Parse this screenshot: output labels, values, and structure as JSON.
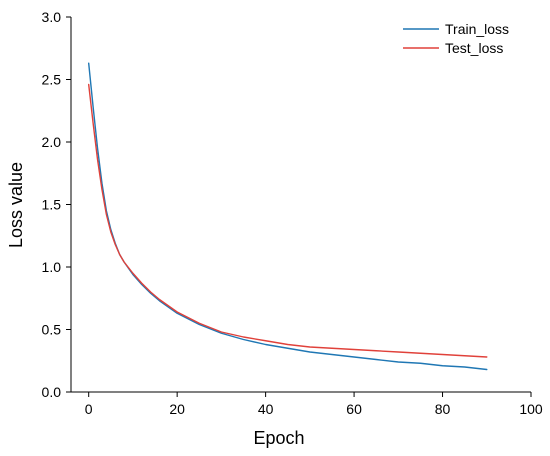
{
  "chart_data": {
    "type": "line",
    "title": "",
    "xlabel": "Epoch",
    "ylabel": "Loss value",
    "xlim": [
      -4,
      100
    ],
    "ylim": [
      0,
      3.0
    ],
    "xticks": [
      0,
      20,
      40,
      60,
      80,
      100
    ],
    "yticks": [
      0.0,
      0.5,
      1.0,
      1.5,
      2.0,
      2.5,
      3.0
    ],
    "xtick_labels": [
      "0",
      "20",
      "40",
      "60",
      "80",
      "100"
    ],
    "ytick_labels": [
      "0.0",
      "0.5",
      "1.0",
      "1.5",
      "2.0",
      "2.5",
      "3.0"
    ],
    "grid": false,
    "legend_position": "top-right",
    "series": [
      {
        "name": "Train_loss",
        "color": "#1f77b4",
        "x": [
          0,
          1,
          2,
          3,
          4,
          5,
          6,
          7,
          8,
          10,
          12,
          14,
          16,
          18,
          20,
          25,
          30,
          35,
          40,
          45,
          50,
          55,
          60,
          65,
          70,
          75,
          80,
          85,
          90
        ],
        "y": [
          2.63,
          2.28,
          1.95,
          1.67,
          1.45,
          1.3,
          1.19,
          1.1,
          1.04,
          0.94,
          0.86,
          0.79,
          0.73,
          0.68,
          0.63,
          0.54,
          0.47,
          0.42,
          0.38,
          0.35,
          0.32,
          0.3,
          0.28,
          0.26,
          0.24,
          0.23,
          0.21,
          0.2,
          0.18
        ]
      },
      {
        "name": "Test_loss",
        "color": "#e0413a",
        "x": [
          0,
          1,
          2,
          3,
          4,
          5,
          6,
          7,
          8,
          10,
          12,
          14,
          16,
          18,
          20,
          25,
          30,
          35,
          40,
          45,
          50,
          55,
          60,
          65,
          70,
          75,
          80,
          85,
          90
        ],
        "y": [
          2.46,
          2.15,
          1.86,
          1.62,
          1.42,
          1.28,
          1.18,
          1.1,
          1.04,
          0.95,
          0.87,
          0.8,
          0.74,
          0.69,
          0.64,
          0.55,
          0.48,
          0.44,
          0.41,
          0.38,
          0.36,
          0.35,
          0.34,
          0.33,
          0.32,
          0.31,
          0.3,
          0.29,
          0.28
        ]
      }
    ]
  }
}
